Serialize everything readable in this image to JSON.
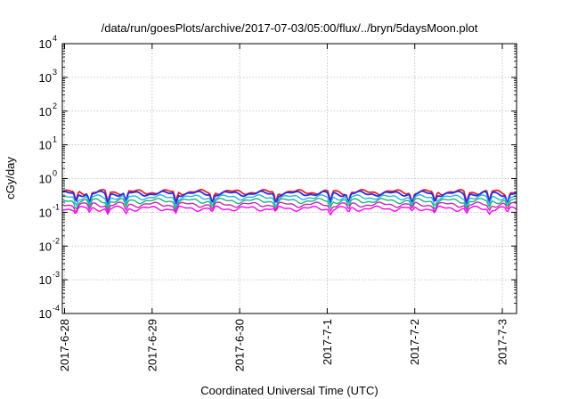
{
  "chart_data": {
    "type": "line",
    "title": "/data/run/goesPlots/archive/2017-07-03/05:00/flux/../bryn/5daysMoon.plot",
    "xlabel": "Coordinated Universal Time (UTC)",
    "ylabel": "cGy/day",
    "yscale": "log",
    "ylim": [
      0.0001,
      10000
    ],
    "xlim": [
      "2017-06-28",
      "2017-07-03"
    ],
    "grid": true,
    "legend": "none",
    "x_ticks": [
      "2017-6-28",
      "2017-6-29",
      "2017-6-30",
      "2017-7-1",
      "2017-7-2",
      "2017-7-3"
    ],
    "y_ticks": [
      {
        "base": "10",
        "exp": "-4"
      },
      {
        "base": "10",
        "exp": "-3"
      },
      {
        "base": "10",
        "exp": "-2"
      },
      {
        "base": "10",
        "exp": "-1"
      },
      {
        "base": "10",
        "exp": "0"
      },
      {
        "base": "10",
        "exp": "1"
      },
      {
        "base": "10",
        "exp": "2"
      },
      {
        "base": "10",
        "exp": "3"
      },
      {
        "base": "10",
        "exp": "4"
      }
    ],
    "series": [
      {
        "color": "#e8212a",
        "level": 0.4
      },
      {
        "color": "#2a2ae6",
        "level": 0.36
      },
      {
        "color": "#1fb6e0",
        "level": 0.28
      },
      {
        "color": "#22b27a",
        "level": 0.22
      },
      {
        "color": "#c22bb3",
        "level": 0.17
      },
      {
        "color": "#ff00ff",
        "level": 0.13
      }
    ]
  }
}
